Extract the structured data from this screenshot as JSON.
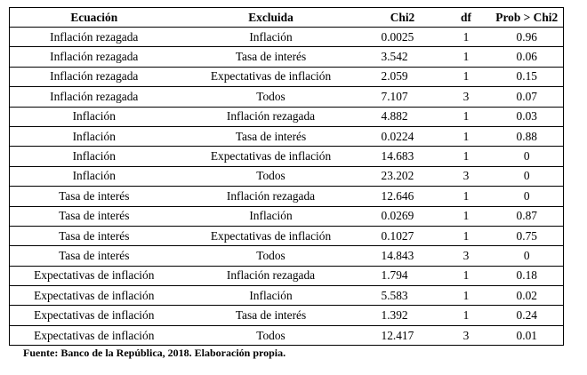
{
  "table": {
    "headers": [
      "Ecuación",
      "Excluida",
      "Chi2",
      "df",
      "Prob > Chi2"
    ],
    "rows": [
      [
        "Inflación rezagada",
        "Inflación",
        "0.0025",
        "1",
        "0.96"
      ],
      [
        "Inflación rezagada",
        "Tasa de interés",
        "3.542",
        "1",
        "0.06"
      ],
      [
        "Inflación rezagada",
        "Expectativas de inflación",
        "2.059",
        "1",
        "0.15"
      ],
      [
        "Inflación rezagada",
        "Todos",
        "7.107",
        "3",
        "0.07"
      ],
      [
        "Inflación",
        "Inflación rezagada",
        "4.882",
        "1",
        "0.03"
      ],
      [
        "Inflación",
        "Tasa de interés",
        "0.0224",
        "1",
        "0.88"
      ],
      [
        "Inflación",
        "Expectativas de inflación",
        "14.683",
        "1",
        "0"
      ],
      [
        "Inflación",
        "Todos",
        "23.202",
        "3",
        "0"
      ],
      [
        "Tasa de interés",
        "Inflación rezagada",
        "12.646",
        "1",
        "0"
      ],
      [
        "Tasa de interés",
        "Inflación",
        "0.0269",
        "1",
        "0.87"
      ],
      [
        "Tasa de interés",
        "Expectativas de inflación",
        "0.1027",
        "1",
        "0.75"
      ],
      [
        "Tasa de interés",
        "Todos",
        "14.843",
        "3",
        "0"
      ],
      [
        "Expectativas de inflación",
        "Inflación rezagada",
        "1.794",
        "1",
        "0.18"
      ],
      [
        "Expectativas de inflación",
        "Inflación",
        "5.583",
        "1",
        "0.02"
      ],
      [
        "Expectativas de inflación",
        "Tasa de interés",
        "1.392",
        "1",
        "0.24"
      ],
      [
        "Expectativas de inflación",
        "Todos",
        "12.417",
        "3",
        "0.01"
      ]
    ]
  },
  "note": "Fuente: Banco de la República, 2018. Elaboración propia."
}
